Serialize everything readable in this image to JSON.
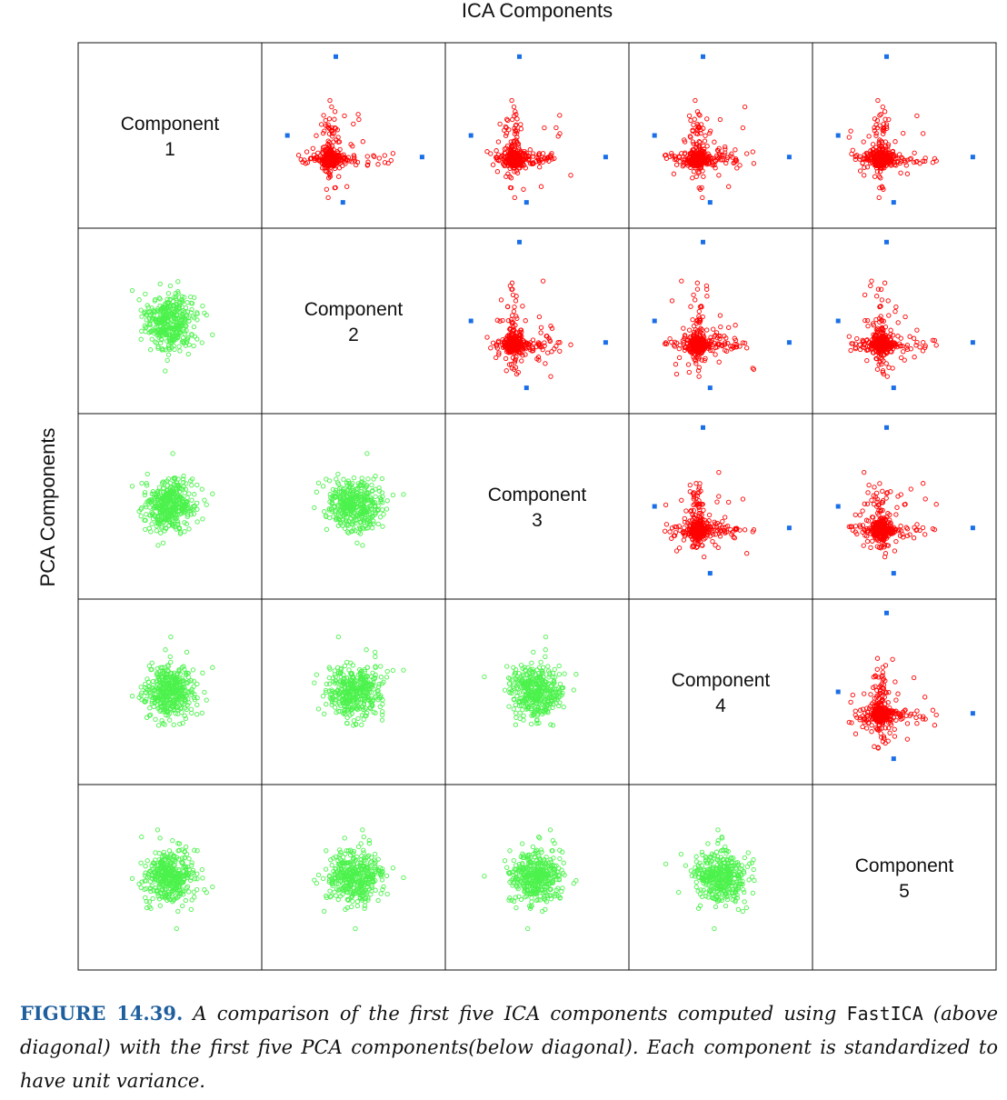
{
  "chart_data": {
    "type": "scatter",
    "layout": "scatterplot-matrix",
    "title": "ICA Components",
    "ylabel": "PCA Components",
    "diagonal_labels": [
      [
        "Component",
        "1"
      ],
      [
        "Component",
        "2"
      ],
      [
        "Component",
        "3"
      ],
      [
        "Component",
        "4"
      ],
      [
        "Component",
        "5"
      ]
    ],
    "above_diagonal": {
      "method": "FastICA",
      "color": "#ff0000",
      "highlight_color": "#1a6fe8",
      "highlighted_points": [
        {
          "rows": [
            1,
            2
          ],
          "values": [
            [
              1.1,
              -3.6
            ],
            [
              2.0,
              -3.6
            ],
            [
              7.8,
              0.2
            ],
            [
              8.6,
              0.5
            ]
          ]
        }
      ]
    },
    "below_diagonal": {
      "method": "PCA",
      "color": "#4cf24c"
    },
    "axis_range": [
      -5,
      9
    ],
    "grid": false
  },
  "caption": {
    "label": "FIGURE 14.39.",
    "text_1": "A comparison of the first five ICA components computed using",
    "code": "FastICA",
    "text_2": "(above diagonal) with the first five PCA components(below diagonal). Each component is standardized to have unit variance."
  }
}
